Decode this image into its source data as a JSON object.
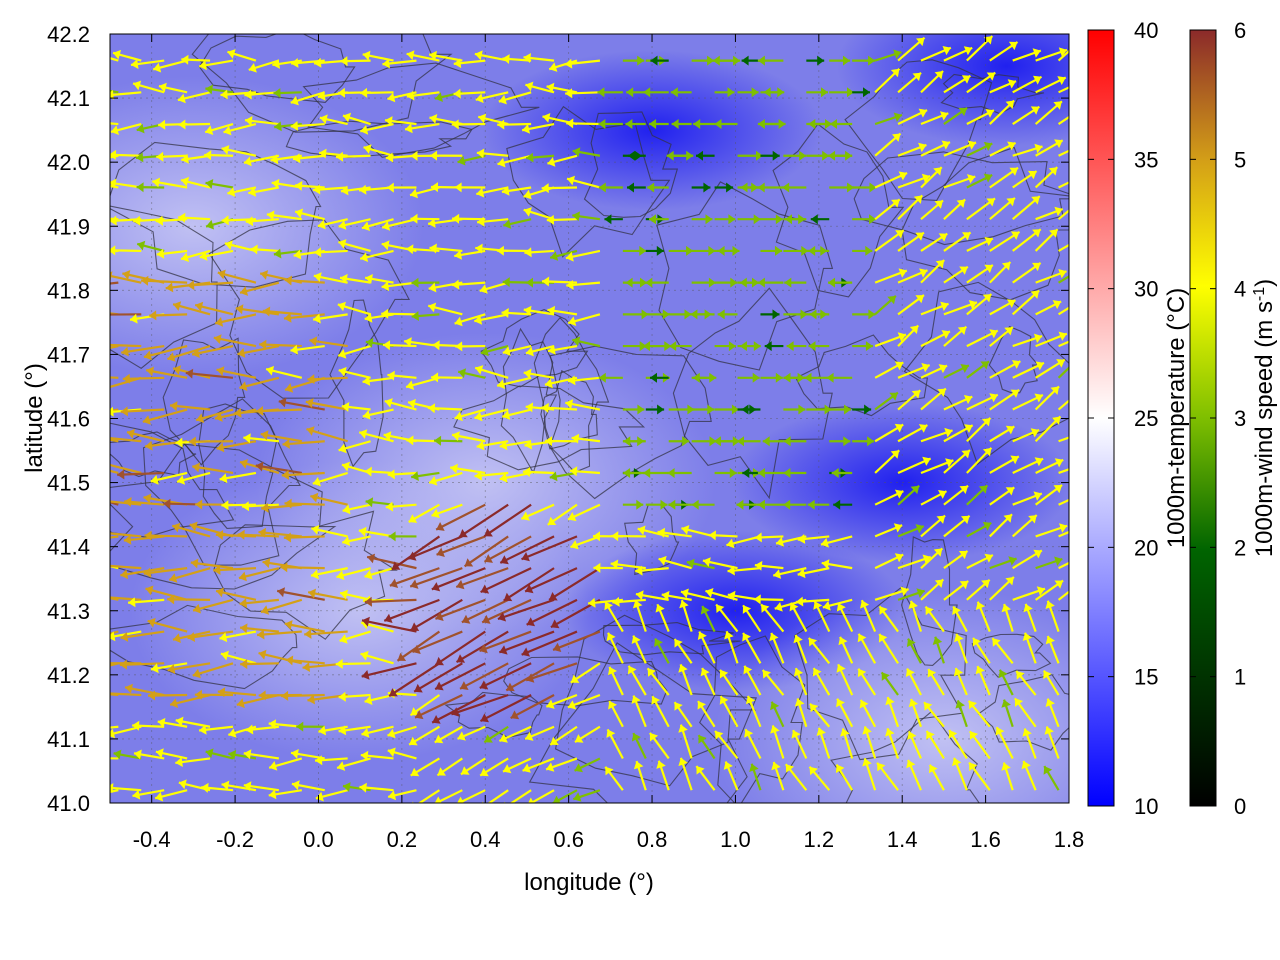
{
  "chart_data": {
    "type": "heatmap",
    "description_overlay": "wind vectors and terrain contours",
    "xlabel": "longitude (°)",
    "ylabel": "latitude (°)",
    "xlim": [
      -0.5,
      1.8
    ],
    "ylim": [
      41.0,
      42.2
    ],
    "x_ticks": [
      "-0.4",
      "-0.2",
      "0.0",
      "0.2",
      "0.4",
      "0.6",
      "0.8",
      "1.0",
      "1.2",
      "1.4",
      "1.6",
      "1.8"
    ],
    "y_ticks": [
      "41.0",
      "41.1",
      "41.2",
      "41.3",
      "41.4",
      "41.5",
      "41.6",
      "41.7",
      "41.8",
      "41.9",
      "42.0",
      "42.1",
      "42.2"
    ],
    "grid": true,
    "temperature_colorbar": {
      "label": "1000m-temperature (°C)",
      "range": [
        10,
        40
      ],
      "ticks": [
        "10",
        "15",
        "20",
        "25",
        "30",
        "35",
        "40"
      ],
      "colors": [
        "#0000ff",
        "#ffffff",
        "#ff0000"
      ]
    },
    "wind_colorbar": {
      "label": "1000m-wind speed (m s-1)",
      "range": [
        0,
        6
      ],
      "ticks": [
        "0",
        "1",
        "2",
        "3",
        "4",
        "5",
        "6"
      ],
      "colors": [
        "#000000",
        "#006400",
        "#7fbf00",
        "#ffff00",
        "#d4a017",
        "#a0522d",
        "#8b2a2a"
      ]
    },
    "temperature_regions": [
      {
        "lon": -0.3,
        "lat": 41.9,
        "temp": 19
      },
      {
        "lon": 0.1,
        "lat": 41.3,
        "temp": 21
      },
      {
        "lon": 0.4,
        "lat": 41.5,
        "temp": 20
      },
      {
        "lon": 0.8,
        "lat": 42.05,
        "temp": 13
      },
      {
        "lon": 1.0,
        "lat": 41.3,
        "temp": 14
      },
      {
        "lon": 1.4,
        "lat": 41.5,
        "temp": 15
      },
      {
        "lon": 1.65,
        "lat": 42.15,
        "temp": 11
      },
      {
        "lon": 1.5,
        "lat": 41.1,
        "temp": 17
      }
    ]
  }
}
